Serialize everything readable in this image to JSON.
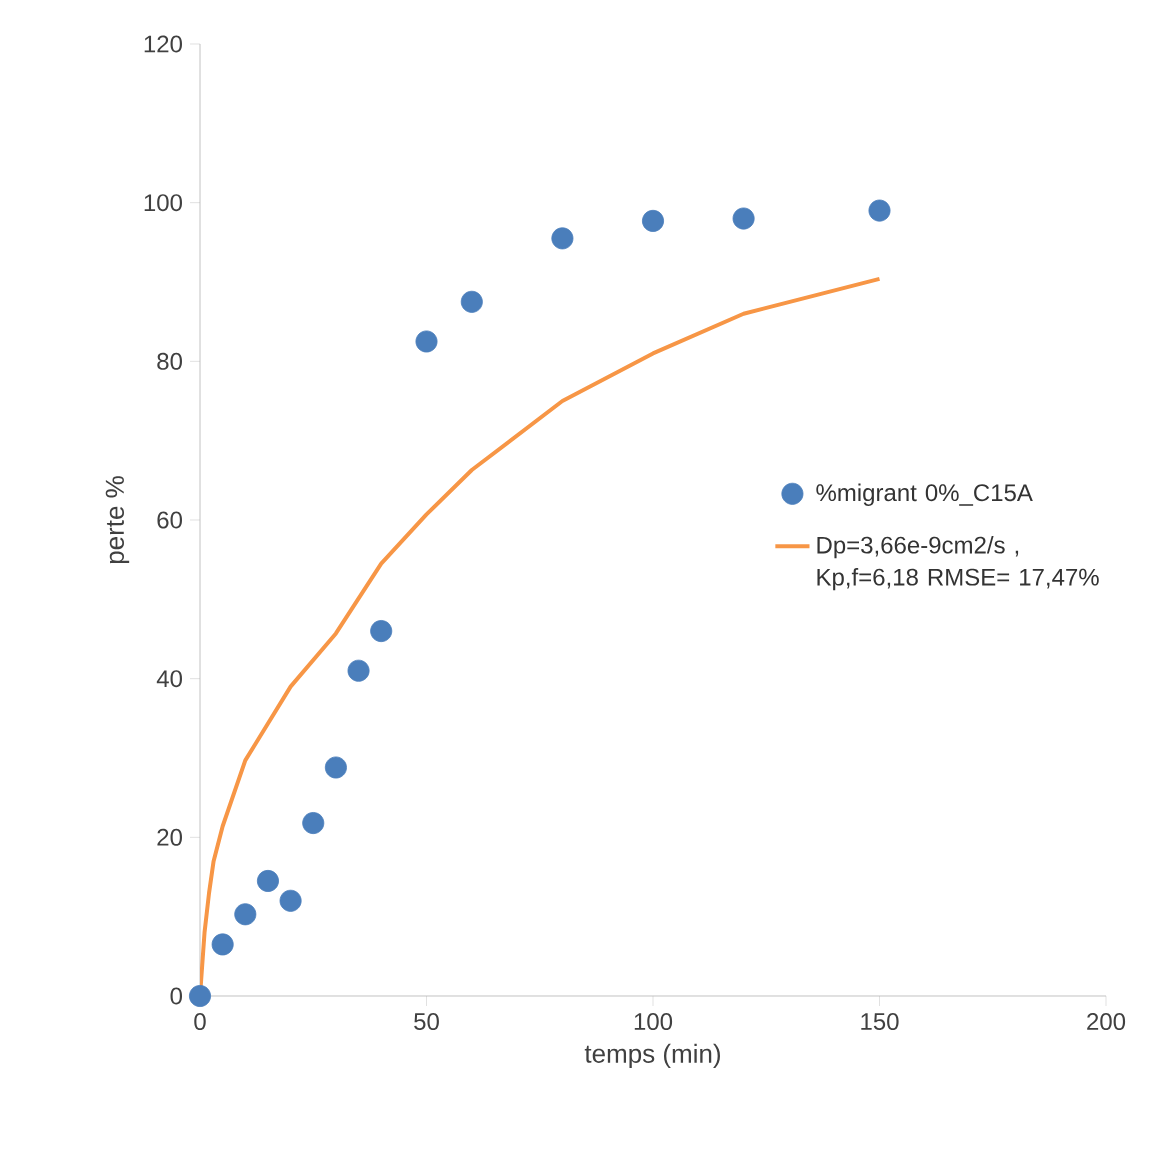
{
  "chart_data": {
    "type": "scatter",
    "xlabel": "temps (min)",
    "ylabel": "perte %",
    "xlim": [
      0,
      200
    ],
    "xticks": [
      0,
      50,
      100,
      150,
      200
    ],
    "ylim": [
      0,
      120
    ],
    "yticks": [
      0,
      20,
      40,
      60,
      80,
      100,
      120
    ],
    "grid": false,
    "legend": "right",
    "series": [
      {
        "name": "%migrant 0%_C15A",
        "marker": "circle",
        "color": "#4a7ebb",
        "x": [
          0,
          5,
          10,
          15,
          20,
          25,
          30,
          35,
          40,
          50,
          60,
          80,
          100,
          120,
          150
        ],
        "values": [
          0,
          6.5,
          10.3,
          14.5,
          12,
          21.8,
          28.8,
          41,
          46,
          82.5,
          87.5,
          95.5,
          97.7,
          98,
          99
        ]
      },
      {
        "name": "Dp=3,66e-9cm2/s , Kp,f=6,18 RMSE= 17,47%",
        "type": "line",
        "marker": "none",
        "line_style": "solid",
        "color": "#f79646",
        "x": [
          0,
          1,
          2,
          3,
          5,
          10,
          20,
          30,
          40,
          50,
          60,
          80,
          100,
          120,
          150
        ],
        "values": [
          0,
          8,
          13,
          17,
          21.4,
          29.7,
          39,
          45.7,
          54.5,
          60.7,
          66.3,
          75,
          81,
          86,
          90.4
        ]
      }
    ]
  }
}
